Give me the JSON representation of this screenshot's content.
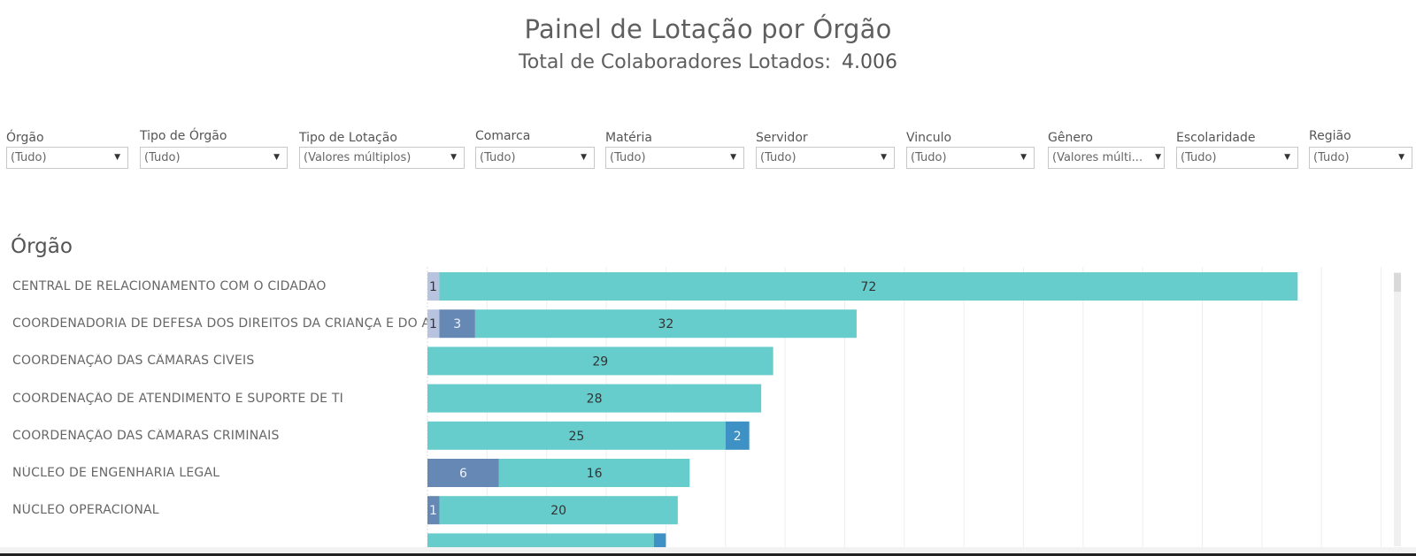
{
  "header": {
    "title": "Painel de Lotação por Órgão",
    "subtitle_label": "Total de Colaboradores Lotados:",
    "subtitle_value": "4.006"
  },
  "filters": [
    {
      "label": "Órgão",
      "value": "(Tudo)"
    },
    {
      "label": "Tipo de Órgão",
      "value": "(Tudo)"
    },
    {
      "label": "Tipo de Lotação",
      "value": "(Valores múltiplos)"
    },
    {
      "label": "Comarca",
      "value": "(Tudo)"
    },
    {
      "label": "Matéria",
      "value": "(Tudo)"
    },
    {
      "label": "Servidor",
      "value": "(Tudo)"
    },
    {
      "label": "Vinculo",
      "value": "(Tudo)"
    },
    {
      "label": "Gênero",
      "value": "(Valores múlti..."
    },
    {
      "label": "Escolaridade",
      "value": "(Tudo)"
    },
    {
      "label": "Região",
      "value": "(Tudo)"
    }
  ],
  "section_title": "Órgão",
  "colors": {
    "light_lavender": "#b7c3df",
    "slate_blue": "#6688b4",
    "teal": "#66cccc",
    "steel_blue": "#3d91c4",
    "gridline": "#eeeeee"
  },
  "chart_data": {
    "type": "bar",
    "orientation": "horizontal",
    "stacked": true,
    "title": "Órgão",
    "xlabel": "",
    "ylabel": "Órgão",
    "xlim": [
      0,
      80
    ],
    "grid": true,
    "grid_step": 5,
    "categories": [
      "CENTRAL DE RELACIONAMENTO COM O CIDADÃO",
      "COORDENADORIA DE DEFESA DOS DIREITOS DA CRIANÇA E DO A..",
      "COORDENAÇÃO DAS CÂMARAS CÍVEIS",
      "COORDENAÇÃO DE ATENDIMENTO E SUPORTE DE TI",
      "COORDENAÇÃO DAS CÂMARAS CRIMINAIS",
      "NÚCLEO DE ENGENHARIA LEGAL",
      "NÚCLEO OPERACIONAL",
      ""
    ],
    "series": [
      {
        "name": "segment-lavender",
        "color": "#b7c3df",
        "values": [
          1,
          1,
          0,
          0,
          0,
          0,
          0,
          0
        ]
      },
      {
        "name": "segment-slate",
        "color": "#6688b4",
        "values": [
          0,
          3,
          0,
          0,
          0,
          6,
          1,
          0
        ]
      },
      {
        "name": "segment-teal",
        "color": "#66cccc",
        "values": [
          72,
          32,
          29,
          28,
          25,
          16,
          20,
          19
        ]
      },
      {
        "name": "segment-steel",
        "color": "#3d91c4",
        "values": [
          0,
          0,
          0,
          0,
          2,
          0,
          0,
          1
        ]
      }
    ]
  }
}
